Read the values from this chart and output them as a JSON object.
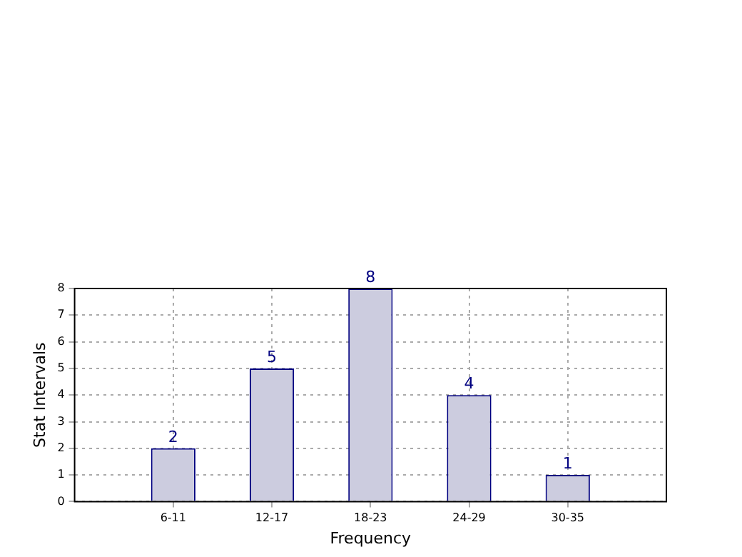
{
  "chart_data": {
    "type": "bar",
    "xlabel": "Frequency",
    "ylabel": "Stat Intervals",
    "categories": [
      "6-11",
      "12-17",
      "18-23",
      "24-29",
      "30-35"
    ],
    "values": [
      2,
      5,
      8,
      4,
      1
    ],
    "color": "#ccccdf",
    "ylim": [
      0,
      8
    ],
    "yticks": [
      0,
      1,
      2,
      3,
      4,
      5,
      6,
      7,
      8
    ],
    "grid": true,
    "data_labels": true
  }
}
